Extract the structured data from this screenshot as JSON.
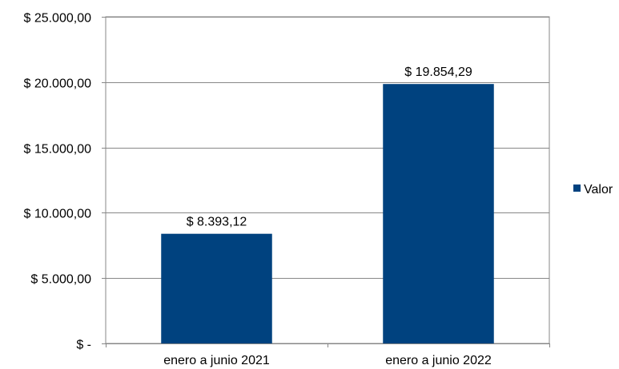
{
  "chart_data": {
    "type": "bar",
    "categories": [
      "enero a junio 2021",
      "enero a junio 2022"
    ],
    "series": [
      {
        "name": "Valor",
        "values": [
          8393.12,
          19854.29
        ],
        "data_labels": [
          "$ 8.393,12",
          "$ 19.854,29"
        ],
        "color": "#00427F"
      }
    ],
    "y_ticks": [
      0,
      5000,
      10000,
      15000,
      20000,
      25000
    ],
    "y_tick_labels": [
      "$ -",
      "$ 5.000,00",
      "$ 10.000,00",
      "$ 15.000,00",
      "$ 20.000,00",
      "$ 25.000,00"
    ],
    "ylim": [
      0,
      25000
    ],
    "grid": true,
    "legend": "right",
    "title": "",
    "xlabel": "",
    "ylabel": ""
  }
}
